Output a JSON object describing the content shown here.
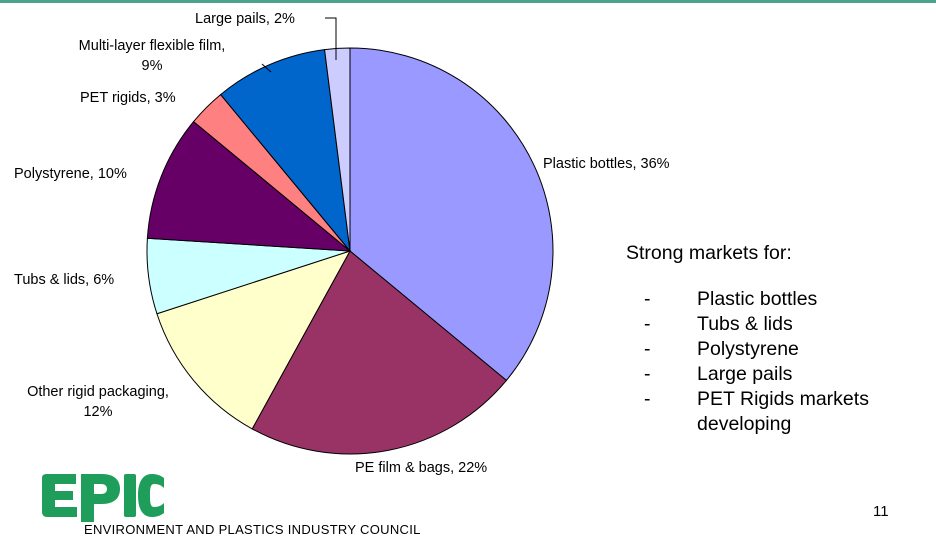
{
  "chart_data": {
    "type": "pie",
    "title": "",
    "slices": [
      {
        "label": "Plastic bottles",
        "value": 36,
        "display": "Plastic bottles, 36%",
        "color": "#9999FF"
      },
      {
        "label": "PE film & bags",
        "value": 22,
        "display": "PE film & bags, 22%",
        "color": "#993366"
      },
      {
        "label": "Other rigid packaging",
        "value": 12,
        "display_lines": [
          "Other rigid packaging,",
          "12%"
        ],
        "color": "#FFFFCC"
      },
      {
        "label": "Tubs & lids",
        "value": 6,
        "display": "Tubs & lids, 6%",
        "color": "#CCFFFF"
      },
      {
        "label": "Polystyrene",
        "value": 10,
        "display": "Polystyrene, 10%",
        "color": "#660066"
      },
      {
        "label": "PET rigids",
        "value": 3,
        "display": "PET rigids, 3%",
        "color": "#FF8080"
      },
      {
        "label": "Multi-layer flexible film",
        "value": 9,
        "display_lines": [
          "Multi-layer flexible film,",
          "9%"
        ],
        "color": "#0066CC"
      },
      {
        "label": "Large pails",
        "value": 2,
        "display": "Large pails, 2%",
        "color": "#CCCCFF"
      }
    ]
  },
  "markets": {
    "heading": "Strong markets for:",
    "dash": "-",
    "items": [
      "Plastic bottles",
      "Tubs & lids",
      "Polystyrene",
      "Large pails",
      "PET Rigids markets developing"
    ]
  },
  "page_number": "11",
  "logo": {
    "wordmark": "EPIC",
    "subtitle": "ENVIRONMENT AND PLASTICS INDUSTRY COUNCIL",
    "color": "#1E9E5A"
  },
  "colors": {
    "rule": "#4AA38A"
  }
}
